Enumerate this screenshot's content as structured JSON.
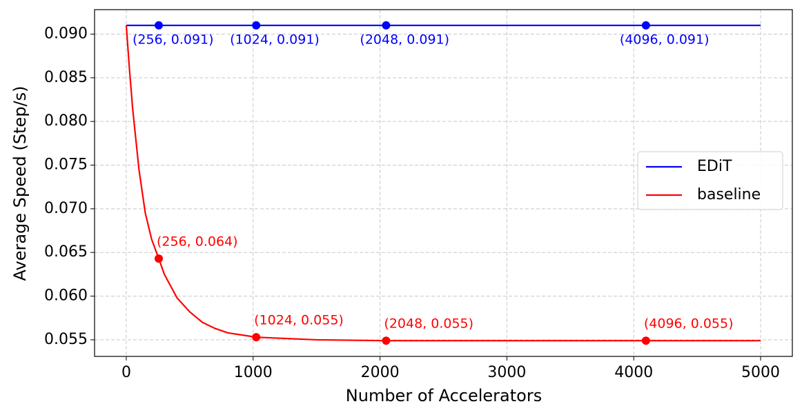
{
  "chart_data": {
    "type": "line",
    "xlabel": "Number of Accelerators",
    "ylabel": "Average Speed (Step/s)",
    "xlim": [
      -250,
      5250
    ],
    "ylim": [
      0.0531,
      0.0928
    ],
    "xticks": [
      0,
      1000,
      2000,
      3000,
      4000,
      5000
    ],
    "yticks": [
      0.055,
      {
        "value": 0.06,
        "label": "0.060"
      },
      0.065,
      {
        "value": 0.07,
        "label": "0.070"
      },
      0.075,
      {
        "value": 0.08,
        "label": "0.080"
      },
      0.085,
      {
        "value": 0.09,
        "label": "0.090"
      }
    ],
    "grid": true,
    "legend": "center right",
    "series": [
      {
        "name": "EDiT",
        "color": "#0000ff",
        "x": [
          0,
          5000
        ],
        "values": [
          0.091,
          0.091
        ],
        "markers": [
          {
            "x": 256,
            "y": 0.091,
            "label": "(256, 0.091)"
          },
          {
            "x": 1024,
            "y": 0.091,
            "label": "(1024, 0.091)"
          },
          {
            "x": 2048,
            "y": 0.091,
            "label": "(2048, 0.091)"
          },
          {
            "x": 4096,
            "y": 0.091,
            "label": "(4096, 0.091)"
          }
        ]
      },
      {
        "name": "baseline",
        "color": "#ff0000",
        "x": [
          0,
          25,
          50,
          100,
          150,
          200,
          256,
          300,
          400,
          500,
          600,
          700,
          800,
          1024,
          1500,
          2048,
          3000,
          4096,
          5000
        ],
        "values": [
          0.091,
          0.086,
          0.0815,
          0.0745,
          0.0695,
          0.0665,
          0.0643,
          0.0625,
          0.0598,
          0.0582,
          0.057,
          0.0563,
          0.0558,
          0.0553,
          0.055,
          0.0549,
          0.0549,
          0.0549,
          0.0549
        ],
        "markers": [
          {
            "x": 256,
            "y": 0.0643,
            "label": "(256, 0.064)"
          },
          {
            "x": 1024,
            "y": 0.0553,
            "label": "(1024, 0.055)"
          },
          {
            "x": 2048,
            "y": 0.0549,
            "label": "(2048, 0.055)"
          },
          {
            "x": 4096,
            "y": 0.0549,
            "label": "(4096, 0.055)"
          }
        ]
      }
    ]
  }
}
